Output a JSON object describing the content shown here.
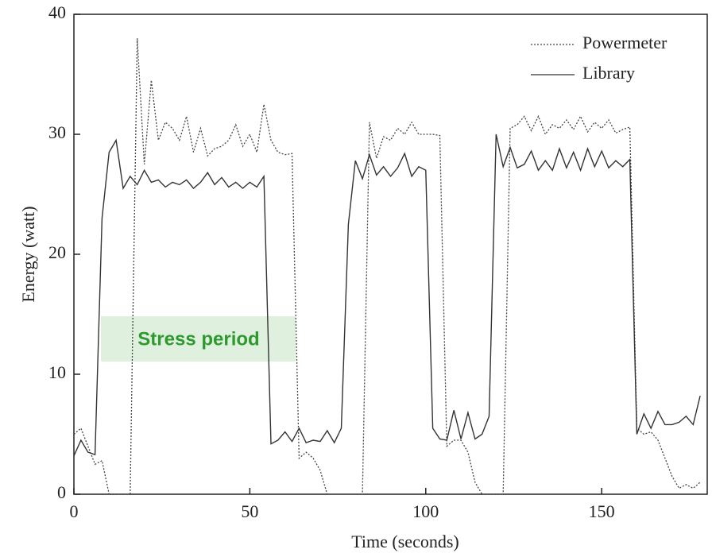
{
  "chart_data": {
    "type": "line",
    "x_label": "Time (seconds)",
    "y_label": "Energy (watt)",
    "annotation": "Stress period",
    "x": [
      0,
      2,
      4,
      6,
      8,
      10,
      12,
      14,
      16,
      18,
      20,
      22,
      24,
      26,
      28,
      30,
      32,
      34,
      36,
      38,
      40,
      42,
      44,
      46,
      48,
      50,
      52,
      54,
      56,
      58,
      60,
      62,
      64,
      66,
      68,
      70,
      72,
      74,
      76,
      78,
      80,
      82,
      84,
      86,
      88,
      90,
      92,
      94,
      96,
      98,
      100,
      102,
      104,
      106,
      108,
      110,
      112,
      114,
      116,
      118,
      120,
      122,
      124,
      126,
      128,
      130,
      132,
      134,
      136,
      138,
      140,
      142,
      144,
      146,
      148,
      150,
      152,
      154,
      156,
      158,
      160,
      162,
      164,
      166,
      168,
      170,
      172,
      174,
      176,
      178
    ],
    "series": [
      {
        "name": "Powermeter",
        "color": "#444444",
        "dashed": true,
        "values": [
          5,
          5.5,
          4,
          2.5,
          2.8,
          0,
          0,
          0,
          0,
          38,
          27.5,
          34.5,
          29.5,
          31,
          30.5,
          29.5,
          31.5,
          28.5,
          30.5,
          28.2,
          28.8,
          29,
          29.5,
          30.8,
          29,
          30,
          28.5,
          32.5,
          29.5,
          28.5,
          28.3,
          28.4,
          3,
          3.5,
          3,
          2,
          0,
          0,
          0,
          0,
          0,
          0,
          31,
          28,
          29.8,
          29.5,
          30.5,
          30,
          31,
          30,
          30,
          30,
          29.9,
          4,
          4.5,
          4.5,
          3.5,
          1,
          0,
          0,
          0,
          0,
          30.5,
          30.8,
          31.5,
          30.3,
          31.5,
          30,
          30.8,
          30.5,
          31.2,
          30.4,
          31.5,
          30.2,
          31,
          30.5,
          31.2,
          30.1,
          30.4,
          30.6,
          5.5,
          5,
          5.2,
          4.5,
          3,
          1.5,
          0.5,
          0.8,
          0.5,
          1
        ]
      },
      {
        "name": "Library",
        "color": "#333333",
        "dashed": false,
        "values": [
          3.2,
          4.5,
          3.5,
          3.3,
          23,
          28.5,
          29.5,
          25.5,
          26.5,
          25.8,
          27,
          26,
          26.2,
          25.6,
          26,
          25.8,
          26.2,
          25.5,
          26,
          26.8,
          25.8,
          26.4,
          25.6,
          26,
          25.5,
          26,
          25.6,
          26.5,
          4.2,
          4.5,
          5.2,
          4.4,
          5.5,
          4.3,
          4.5,
          4.4,
          5.3,
          4.3,
          5.5,
          22.5,
          27.8,
          26.3,
          28.3,
          26.6,
          27.3,
          26.5,
          27.2,
          28.4,
          26.5,
          27.3,
          27,
          5.5,
          4.6,
          4.5,
          7,
          4.6,
          6.8,
          4.6,
          5,
          6.5,
          30,
          27.3,
          28.9,
          27.2,
          27.5,
          28.6,
          27,
          27.8,
          27,
          28.8,
          27.2,
          28.5,
          27,
          28.8,
          27.3,
          28.6,
          27.2,
          27.8,
          27.3,
          27.9,
          5,
          6.7,
          5.5,
          6.9,
          5.8,
          5.8,
          6,
          6.5,
          5.8,
          8.2
        ]
      }
    ],
    "xlim": [
      0,
      180
    ],
    "ylim": [
      0,
      40
    ],
    "xticks": [
      0,
      50,
      100,
      150
    ],
    "yticks": [
      0,
      10,
      20,
      30,
      40
    ],
    "legend": "upper right"
  }
}
